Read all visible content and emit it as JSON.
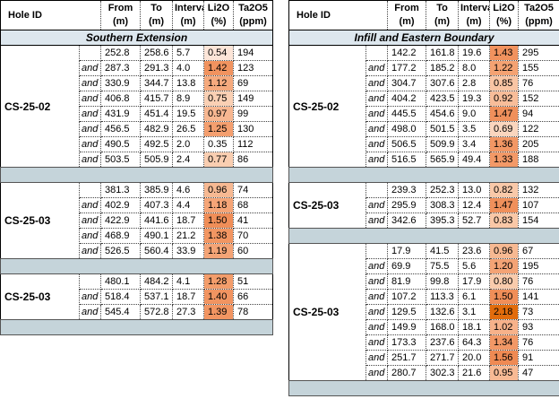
{
  "header": [
    {
      "label": "Hole ID"
    },
    {
      "label": "From",
      "unit": "(m)"
    },
    {
      "label": "To",
      "unit": "(m)"
    },
    {
      "label": "Interval",
      "unit": "(m)"
    },
    {
      "label": "Li2O",
      "unit": "(%)"
    },
    {
      "label": "Ta2O5",
      "unit": "(ppm)"
    }
  ],
  "tables": [
    {
      "section": "Southern Extension",
      "groups": [
        {
          "hole_id": "CS-25-02",
          "rows": [
            {
              "from": "252.8",
              "to": "258.6",
              "interval": "5.7",
              "li2o": "0.54",
              "ta2o5": "194"
            },
            {
              "joiner": "and",
              "from": "287.3",
              "to": "291.3",
              "interval": "4.0",
              "li2o": "1.42",
              "ta2o5": "123"
            },
            {
              "joiner": "and",
              "from": "330.9",
              "to": "344.7",
              "interval": "13.8",
              "li2o": "1.12",
              "ta2o5": "69"
            },
            {
              "joiner": "and",
              "from": "406.8",
              "to": "415.7",
              "interval": "8.9",
              "li2o": "0.75",
              "ta2o5": "149"
            },
            {
              "joiner": "and",
              "from": "431.9",
              "to": "451.4",
              "interval": "19.5",
              "li2o": "0.97",
              "ta2o5": "99"
            },
            {
              "joiner": "and",
              "from": "456.5",
              "to": "482.9",
              "interval": "26.5",
              "li2o": "1.25",
              "ta2o5": "130"
            },
            {
              "joiner": "and",
              "from": "490.5",
              "to": "492.5",
              "interval": "2.0",
              "li2o": "0.35",
              "ta2o5": "112"
            },
            {
              "joiner": "and",
              "from": "503.5",
              "to": "505.9",
              "interval": "2.4",
              "li2o": "0.77",
              "ta2o5": "86"
            }
          ]
        },
        {
          "hole_id": "CS-25-03",
          "rows": [
            {
              "from": "381.3",
              "to": "385.9",
              "interval": "4.6",
              "li2o": "0.96",
              "ta2o5": "74"
            },
            {
              "joiner": "and",
              "from": "402.9",
              "to": "407.3",
              "interval": "4.4",
              "li2o": "1.18",
              "ta2o5": "68"
            },
            {
              "joiner": "and",
              "from": "422.9",
              "to": "441.6",
              "interval": "18.7",
              "li2o": "1.50",
              "ta2o5": "41"
            },
            {
              "joiner": "and",
              "from": "468.9",
              "to": "490.1",
              "interval": "21.2",
              "li2o": "1.38",
              "ta2o5": "70"
            },
            {
              "joiner": "and",
              "from": "526.5",
              "to": "560.4",
              "interval": "33.9",
              "li2o": "1.19",
              "ta2o5": "60"
            }
          ]
        },
        {
          "hole_id": "CS-25-03",
          "rows": [
            {
              "from": "480.1",
              "to": "484.2",
              "interval": "4.1",
              "li2o": "1.28",
              "ta2o5": "51"
            },
            {
              "joiner": "and",
              "from": "518.4",
              "to": "537.1",
              "interval": "18.7",
              "li2o": "1.40",
              "ta2o5": "66"
            },
            {
              "joiner": "and",
              "from": "545.4",
              "to": "572.8",
              "interval": "27.3",
              "li2o": "1.39",
              "ta2o5": "78"
            }
          ]
        }
      ]
    },
    {
      "section": "Infill and Eastern Boundary",
      "groups": [
        {
          "hole_id": "CS-25-02",
          "rows": [
            {
              "from": "142.2",
              "to": "161.8",
              "interval": "19.6",
              "li2o": "1.43",
              "ta2o5": "295"
            },
            {
              "joiner": "and",
              "from": "177.2",
              "to": "185.2",
              "interval": "8.0",
              "li2o": "1.22",
              "ta2o5": "155"
            },
            {
              "joiner": "and",
              "from": "304.7",
              "to": "307.6",
              "interval": "2.8",
              "li2o": "0.85",
              "ta2o5": "76"
            },
            {
              "joiner": "and",
              "from": "404.2",
              "to": "423.5",
              "interval": "19.3",
              "li2o": "0.92",
              "ta2o5": "152"
            },
            {
              "joiner": "and",
              "from": "445.5",
              "to": "454.6",
              "interval": "9.0",
              "li2o": "1.47",
              "ta2o5": "94"
            },
            {
              "joiner": "and",
              "from": "498.0",
              "to": "501.5",
              "interval": "3.5",
              "li2o": "0.69",
              "ta2o5": "122"
            },
            {
              "joiner": "and",
              "from": "506.5",
              "to": "509.9",
              "interval": "3.4",
              "li2o": "1.36",
              "ta2o5": "205"
            },
            {
              "joiner": "and",
              "from": "516.5",
              "to": "565.9",
              "interval": "49.4",
              "li2o": "1.33",
              "ta2o5": "188"
            }
          ]
        },
        {
          "hole_id": "CS-25-03",
          "rows": [
            {
              "from": "239.3",
              "to": "252.3",
              "interval": "13.0",
              "li2o": "0.82",
              "ta2o5": "132"
            },
            {
              "joiner": "and",
              "from": "295.9",
              "to": "308.3",
              "interval": "12.4",
              "li2o": "1.47",
              "ta2o5": "107"
            },
            {
              "joiner": "and",
              "from": "342.6",
              "to": "395.3",
              "interval": "52.7",
              "li2o": "0.83",
              "ta2o5": "154"
            }
          ]
        },
        {
          "hole_id": "CS-25-03",
          "rows": [
            {
              "from": "17.9",
              "to": "41.5",
              "interval": "23.6",
              "li2o": "0.96",
              "ta2o5": "67"
            },
            {
              "joiner": "and",
              "from": "69.9",
              "to": "75.5",
              "interval": "5.6",
              "li2o": "1.20",
              "ta2o5": "195"
            },
            {
              "joiner": "and",
              "from": "81.9",
              "to": "99.8",
              "interval": "17.9",
              "li2o": "0.80",
              "ta2o5": "76"
            },
            {
              "joiner": "and",
              "from": "107.2",
              "to": "113.3",
              "interval": "6.1",
              "li2o": "1.50",
              "ta2o5": "141"
            },
            {
              "joiner": "and",
              "from": "129.5",
              "to": "132.6",
              "interval": "3.1",
              "li2o": "2.18",
              "ta2o5": "73"
            },
            {
              "joiner": "and",
              "from": "149.9",
              "to": "168.0",
              "interval": "18.1",
              "li2o": "1.02",
              "ta2o5": "93"
            },
            {
              "joiner": "and",
              "from": "173.3",
              "to": "237.6",
              "interval": "64.3",
              "li2o": "1.34",
              "ta2o5": "76"
            },
            {
              "joiner": "and",
              "from": "251.7",
              "to": "271.7",
              "interval": "20.0",
              "li2o": "1.56",
              "ta2o5": "91"
            },
            {
              "joiner": "and",
              "from": "280.7",
              "to": "302.3",
              "interval": "21.6",
              "li2o": "0.95",
              "ta2o5": "47"
            }
          ]
        }
      ]
    }
  ]
}
